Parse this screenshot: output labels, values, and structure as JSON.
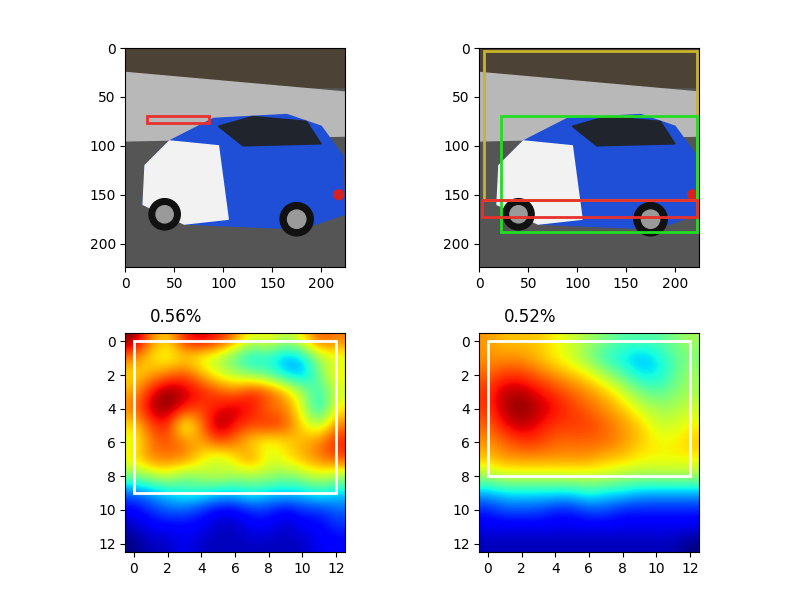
{
  "chart_data": [
    {
      "type": "image",
      "xlim": [
        0,
        224
      ],
      "ylim": [
        224,
        0
      ],
      "xticks": [
        0,
        50,
        100,
        150,
        200
      ],
      "yticks": [
        0,
        50,
        100,
        150,
        200
      ],
      "boxes": [
        {
          "color": "#e8302c",
          "values": [
            22,
            70,
            85,
            77
          ]
        }
      ]
    },
    {
      "type": "image",
      "xlim": [
        0,
        224
      ],
      "ylim": [
        224,
        0
      ],
      "xticks": [
        0,
        50,
        100,
        150,
        200
      ],
      "yticks": [
        0,
        50,
        100,
        150,
        200
      ],
      "boxes": [
        {
          "color": "#c8b42a",
          "values": [
            5,
            3,
            222,
            155
          ]
        },
        {
          "color": "#22dd22",
          "values": [
            22,
            70,
            222,
            188
          ]
        },
        {
          "color": "#e8302c",
          "values": [
            3,
            155,
            222,
            173
          ]
        }
      ]
    },
    {
      "type": "heatmap",
      "title": "0.56%",
      "xlim": [
        -0.5,
        12.5
      ],
      "ylim": [
        12.5,
        -0.5
      ],
      "xticks": [
        0,
        2,
        4,
        6,
        8,
        10,
        12
      ],
      "yticks": [
        0,
        2,
        4,
        6,
        8,
        10,
        12
      ],
      "boxes": [
        {
          "color": "white",
          "values": [
            0,
            0,
            12,
            9
          ]
        }
      ],
      "cells": [
        [
          0.9,
          0.7,
          0.6,
          0.8,
          0.85,
          0.8,
          0.7,
          0.55,
          0.6,
          0.5,
          0.6,
          0.75,
          0.7
        ],
        [
          0.7,
          0.6,
          0.55,
          0.6,
          0.55,
          0.5,
          0.4,
          0.3,
          0.35,
          0.25,
          0.3,
          0.5,
          0.55
        ],
        [
          0.6,
          0.65,
          0.7,
          0.75,
          0.65,
          0.55,
          0.5,
          0.45,
          0.4,
          0.3,
          0.25,
          0.45,
          0.6
        ],
        [
          0.65,
          0.8,
          0.9,
          0.85,
          0.8,
          0.75,
          0.7,
          0.8,
          0.75,
          0.65,
          0.5,
          0.35,
          0.55
        ],
        [
          0.7,
          0.85,
          0.9,
          0.8,
          0.75,
          0.8,
          0.85,
          0.8,
          0.7,
          0.7,
          0.55,
          0.3,
          0.6
        ],
        [
          0.6,
          0.75,
          0.8,
          0.5,
          0.7,
          0.9,
          0.8,
          0.75,
          0.8,
          0.75,
          0.6,
          0.5,
          0.7
        ],
        [
          0.55,
          0.7,
          0.75,
          0.7,
          0.65,
          0.75,
          0.7,
          0.6,
          0.55,
          0.6,
          0.65,
          0.7,
          0.8
        ],
        [
          0.6,
          0.7,
          0.7,
          0.7,
          0.6,
          0.5,
          0.6,
          0.7,
          0.55,
          0.6,
          0.65,
          0.7,
          0.75
        ],
        [
          0.45,
          0.5,
          0.55,
          0.45,
          0.5,
          0.55,
          0.5,
          0.5,
          0.5,
          0.45,
          0.5,
          0.55,
          0.5
        ],
        [
          0.2,
          0.25,
          0.3,
          0.35,
          0.35,
          0.3,
          0.3,
          0.35,
          0.3,
          0.3,
          0.3,
          0.35,
          0.3
        ],
        [
          0.1,
          0.15,
          0.2,
          0.2,
          0.15,
          0.1,
          0.1,
          0.15,
          0.15,
          0.1,
          0.15,
          0.15,
          0.2
        ],
        [
          0.05,
          0.1,
          0.1,
          0.1,
          0.1,
          0.05,
          0.05,
          0.1,
          0.1,
          0.05,
          0.1,
          0.1,
          0.15
        ],
        [
          0.0,
          0.05,
          0.05,
          0.1,
          0.05,
          0.05,
          0.05,
          0.05,
          0.05,
          0.05,
          0.05,
          0.1,
          0.1
        ]
      ]
    },
    {
      "type": "heatmap",
      "title": "0.52%",
      "xlim": [
        -0.5,
        12.5
      ],
      "ylim": [
        12.5,
        -0.5
      ],
      "xticks": [
        0,
        2,
        4,
        6,
        8,
        10,
        12
      ],
      "yticks": [
        0,
        2,
        4,
        6,
        8,
        10,
        12
      ],
      "boxes": [
        {
          "color": "white",
          "values": [
            0,
            0,
            12,
            8
          ]
        }
      ],
      "cells": [
        [
          0.75,
          0.7,
          0.7,
          0.7,
          0.65,
          0.6,
          0.55,
          0.5,
          0.45,
          0.45,
          0.45,
          0.5,
          0.55
        ],
        [
          0.75,
          0.75,
          0.75,
          0.7,
          0.65,
          0.6,
          0.5,
          0.4,
          0.35,
          0.3,
          0.35,
          0.45,
          0.5
        ],
        [
          0.8,
          0.85,
          0.85,
          0.8,
          0.75,
          0.7,
          0.65,
          0.55,
          0.45,
          0.35,
          0.35,
          0.45,
          0.55
        ],
        [
          0.85,
          0.95,
          0.95,
          0.9,
          0.85,
          0.8,
          0.75,
          0.7,
          0.6,
          0.5,
          0.45,
          0.5,
          0.55
        ],
        [
          0.85,
          0.95,
          1.0,
          0.95,
          0.9,
          0.85,
          0.8,
          0.75,
          0.7,
          0.6,
          0.55,
          0.55,
          0.6
        ],
        [
          0.8,
          0.9,
          0.95,
          0.9,
          0.85,
          0.85,
          0.85,
          0.8,
          0.75,
          0.7,
          0.6,
          0.6,
          0.65
        ],
        [
          0.75,
          0.8,
          0.85,
          0.85,
          0.8,
          0.8,
          0.8,
          0.8,
          0.75,
          0.7,
          0.65,
          0.65,
          0.7
        ],
        [
          0.7,
          0.75,
          0.75,
          0.75,
          0.75,
          0.75,
          0.75,
          0.7,
          0.7,
          0.65,
          0.65,
          0.65,
          0.65
        ],
        [
          0.55,
          0.6,
          0.6,
          0.6,
          0.6,
          0.6,
          0.6,
          0.6,
          0.55,
          0.55,
          0.55,
          0.55,
          0.55
        ],
        [
          0.3,
          0.35,
          0.35,
          0.35,
          0.35,
          0.35,
          0.4,
          0.35,
          0.35,
          0.3,
          0.3,
          0.3,
          0.3
        ],
        [
          0.15,
          0.2,
          0.2,
          0.2,
          0.15,
          0.15,
          0.2,
          0.2,
          0.15,
          0.15,
          0.15,
          0.15,
          0.15
        ],
        [
          0.1,
          0.1,
          0.1,
          0.1,
          0.1,
          0.1,
          0.1,
          0.1,
          0.1,
          0.1,
          0.1,
          0.1,
          0.1
        ],
        [
          0.05,
          0.05,
          0.05,
          0.05,
          0.05,
          0.05,
          0.05,
          0.05,
          0.05,
          0.05,
          0.05,
          0.05,
          0.0
        ]
      ]
    }
  ]
}
